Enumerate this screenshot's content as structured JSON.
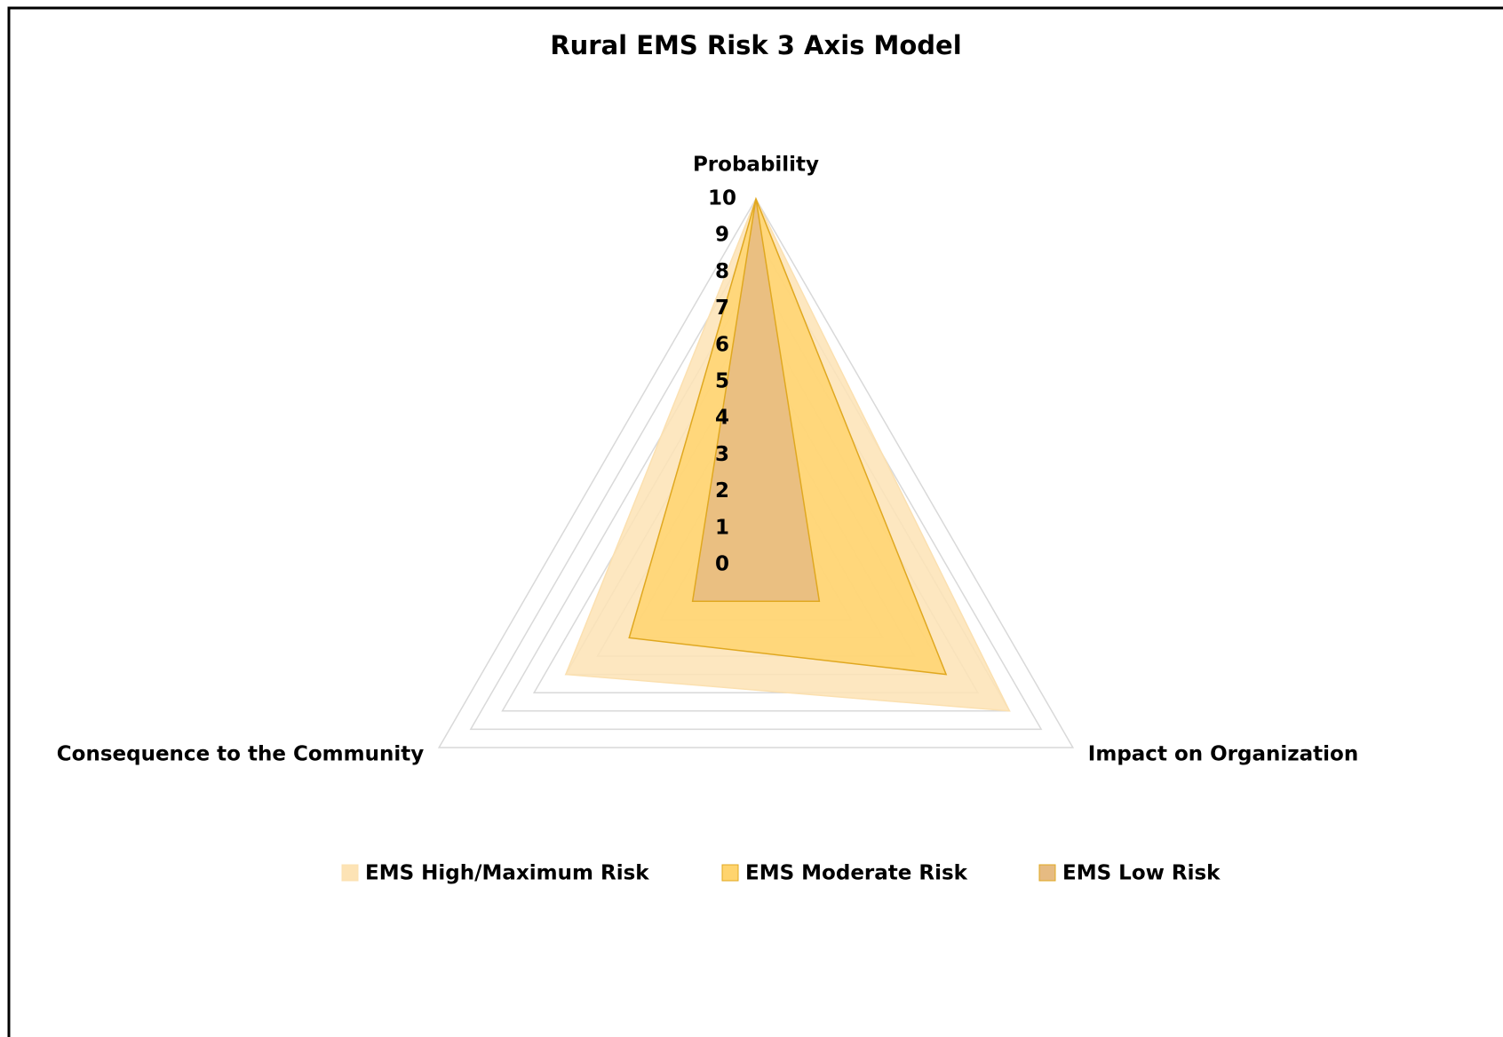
{
  "chart_data": {
    "type": "radar",
    "title": "Rural EMS Risk 3 Axis Model",
    "categories": [
      "Probability",
      "Impact on Organization",
      "Consequence to the Community"
    ],
    "series": [
      {
        "name": "EMS High/Maximum Risk",
        "color": "#fde3b5",
        "values": [
          10,
          8,
          6
        ]
      },
      {
        "name": "EMS Moderate Risk",
        "color": "#ffd46e",
        "values": [
          10,
          6,
          4
        ]
      },
      {
        "name": "EMS Low Risk",
        "color": "#e6bb82",
        "values": [
          10,
          2,
          2
        ]
      }
    ],
    "rlim": [
      0,
      10
    ],
    "rticks": [
      0,
      1,
      2,
      3,
      4,
      5,
      6,
      7,
      8,
      9,
      10
    ],
    "grid": true,
    "legend": "bottom"
  }
}
